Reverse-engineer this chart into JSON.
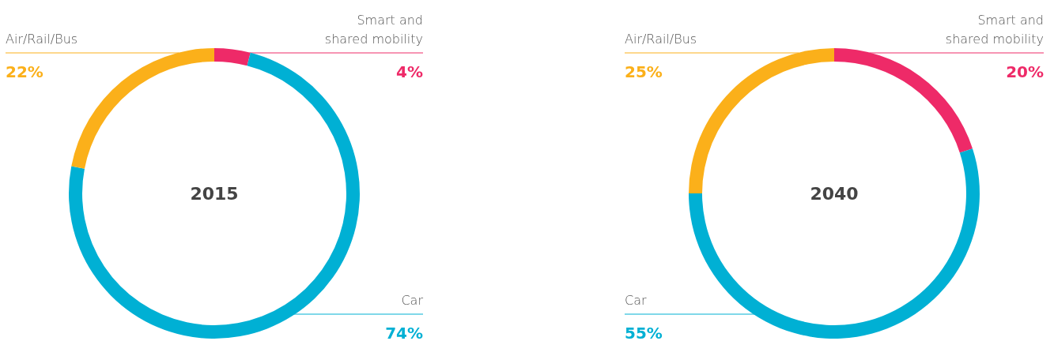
{
  "chart_data": [
    {
      "type": "donut",
      "title": "2015",
      "categories": [
        "Smart and shared mobility",
        "Car",
        "Air/Rail/Bus"
      ],
      "values": [
        4,
        74,
        22
      ],
      "colors": [
        "#ee2a68",
        "#00b0d4",
        "#fbb01a"
      ],
      "value_labels": [
        "4%",
        "74%",
        "22%"
      ]
    },
    {
      "type": "donut",
      "title": "2040",
      "categories": [
        "Smart and shared mobility",
        "Car",
        "Air/Rail/Bus"
      ],
      "values": [
        20,
        55,
        25
      ],
      "colors": [
        "#ee2a68",
        "#00b0d4",
        "#fbb01a"
      ],
      "value_labels": [
        "20%",
        "55%",
        "25%"
      ]
    }
  ]
}
